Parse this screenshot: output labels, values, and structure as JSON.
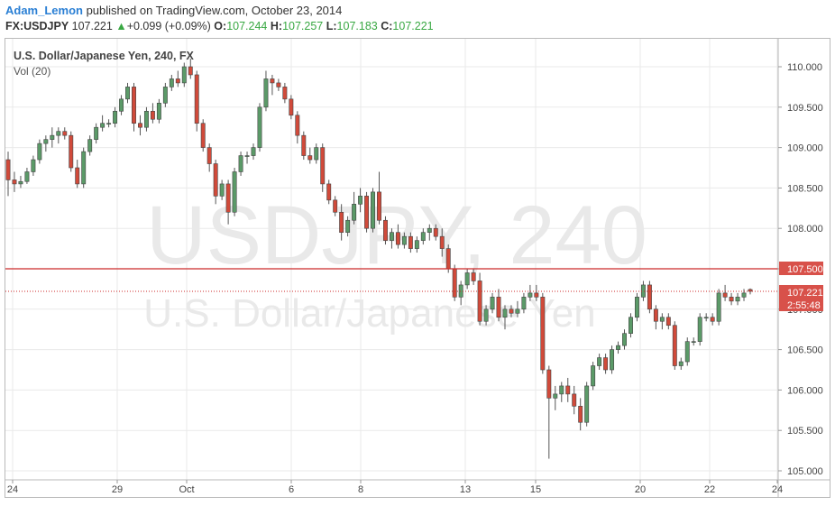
{
  "header": {
    "author": "Adam_Lemon",
    "published": " published on TradingView.com, October 23, 2014",
    "symbol": "FX:USDJPY",
    "last": "107.221",
    "change_arrow": "▲",
    "change": "+0.099 (+0.09%)",
    "open_label": "O:",
    "open": "107.244",
    "high_label": "H:",
    "high": "107.257",
    "low_label": "L:",
    "low": "107.183",
    "close_label": "C:",
    "close": "107.221"
  },
  "chart_title": "U.S. Dollar/Japanese Yen, 240, FX",
  "volume_label": "Vol (20)",
  "watermark": {
    "line1": "USDJPY, 240",
    "line2": "U.S. Dollar/Japanese Yen"
  },
  "colors": {
    "up": "#5b9a68",
    "down": "#d04a3a",
    "resistance": "#cc2a2a",
    "price_tag": "#d8514a",
    "grid": "#eaeaea"
  },
  "chart_data": {
    "type": "candlestick",
    "ylim": [
      104.95,
      110.15
    ],
    "y_ticks": [
      "105.000",
      "105.500",
      "106.000",
      "106.500",
      "107.000",
      "107.500",
      "108.000",
      "108.500",
      "109.000",
      "109.500",
      "110.000"
    ],
    "x_ticks": [
      "24",
      "29",
      "Oct",
      "6",
      "8",
      "13",
      "15",
      "20",
      "22",
      "24"
    ],
    "resistance_level": 107.5,
    "resistance_label": "107.500",
    "current_price": 107.221,
    "current_label": "107.221",
    "countdown": "2:55:48",
    "candles": [
      [
        108.85,
        108.95,
        108.4,
        108.6
      ],
      [
        108.6,
        108.7,
        108.45,
        108.55
      ],
      [
        108.55,
        108.65,
        108.5,
        108.58
      ],
      [
        108.58,
        108.75,
        108.55,
        108.7
      ],
      [
        108.7,
        108.9,
        108.65,
        108.85
      ],
      [
        108.85,
        109.1,
        108.8,
        109.05
      ],
      [
        109.05,
        109.15,
        108.95,
        109.1
      ],
      [
        109.1,
        109.25,
        109.0,
        109.15
      ],
      [
        109.15,
        109.25,
        109.05,
        109.2
      ],
      [
        109.2,
        109.25,
        109.1,
        109.15
      ],
      [
        109.15,
        109.2,
        108.7,
        108.75
      ],
      [
        108.75,
        108.85,
        108.5,
        108.55
      ],
      [
        108.55,
        109.0,
        108.5,
        108.95
      ],
      [
        108.95,
        109.15,
        108.9,
        109.1
      ],
      [
        109.1,
        109.3,
        109.05,
        109.25
      ],
      [
        109.25,
        109.4,
        109.2,
        109.3
      ],
      [
        109.3,
        109.35,
        109.25,
        109.3
      ],
      [
        109.3,
        109.5,
        109.25,
        109.45
      ],
      [
        109.45,
        109.65,
        109.4,
        109.6
      ],
      [
        109.6,
        109.8,
        109.55,
        109.75
      ],
      [
        109.75,
        109.8,
        109.2,
        109.3
      ],
      [
        109.3,
        109.4,
        109.15,
        109.25
      ],
      [
        109.25,
        109.5,
        109.2,
        109.45
      ],
      [
        109.45,
        109.55,
        109.3,
        109.35
      ],
      [
        109.35,
        109.6,
        109.3,
        109.55
      ],
      [
        109.55,
        109.8,
        109.5,
        109.75
      ],
      [
        109.75,
        109.9,
        109.7,
        109.85
      ],
      [
        109.85,
        109.95,
        109.75,
        109.8
      ],
      [
        109.8,
        110.05,
        109.75,
        110.0
      ],
      [
        110.0,
        110.1,
        109.85,
        109.9
      ],
      [
        109.9,
        109.95,
        109.2,
        109.3
      ],
      [
        109.3,
        109.35,
        108.95,
        109.0
      ],
      [
        109.0,
        109.05,
        108.7,
        108.8
      ],
      [
        108.8,
        108.85,
        108.3,
        108.4
      ],
      [
        108.4,
        108.6,
        108.35,
        108.55
      ],
      [
        108.55,
        108.6,
        108.05,
        108.2
      ],
      [
        108.2,
        108.75,
        108.15,
        108.7
      ],
      [
        108.7,
        108.95,
        108.65,
        108.9
      ],
      [
        108.9,
        108.95,
        108.8,
        108.9
      ],
      [
        108.9,
        109.05,
        108.85,
        109.0
      ],
      [
        109.0,
        109.55,
        108.95,
        109.5
      ],
      [
        109.5,
        109.95,
        109.45,
        109.85
      ],
      [
        109.85,
        109.9,
        109.65,
        109.8
      ],
      [
        109.8,
        109.85,
        109.7,
        109.75
      ],
      [
        109.75,
        109.8,
        109.55,
        109.6
      ],
      [
        109.6,
        109.65,
        109.35,
        109.4
      ],
      [
        109.4,
        109.45,
        109.05,
        109.15
      ],
      [
        109.15,
        109.2,
        108.85,
        108.9
      ],
      [
        108.9,
        109.0,
        108.8,
        108.85
      ],
      [
        108.85,
        109.05,
        108.8,
        109.0
      ],
      [
        109.0,
        109.05,
        108.45,
        108.55
      ],
      [
        108.55,
        108.6,
        108.3,
        108.35
      ],
      [
        108.35,
        108.4,
        108.15,
        108.2
      ],
      [
        108.2,
        108.3,
        107.85,
        107.95
      ],
      [
        107.95,
        108.15,
        107.9,
        108.1
      ],
      [
        108.1,
        108.45,
        108.05,
        108.3
      ],
      [
        108.3,
        108.5,
        108.2,
        108.4
      ],
      [
        108.4,
        108.45,
        107.95,
        108.0
      ],
      [
        108.0,
        108.5,
        107.95,
        108.45
      ],
      [
        108.45,
        108.7,
        108.05,
        108.1
      ],
      [
        108.1,
        108.15,
        107.8,
        107.85
      ],
      [
        107.85,
        108.0,
        107.75,
        107.95
      ],
      [
        107.95,
        108.05,
        107.75,
        107.8
      ],
      [
        107.8,
        107.95,
        107.75,
        107.9
      ],
      [
        107.9,
        107.95,
        107.7,
        107.75
      ],
      [
        107.75,
        107.9,
        107.7,
        107.85
      ],
      [
        107.85,
        108.0,
        107.8,
        107.95
      ],
      [
        107.95,
        108.05,
        107.85,
        108.0
      ],
      [
        108.0,
        108.05,
        107.85,
        107.9
      ],
      [
        107.9,
        108.0,
        107.65,
        107.75
      ],
      [
        107.75,
        107.8,
        107.45,
        107.5
      ],
      [
        107.5,
        107.55,
        107.1,
        107.15
      ],
      [
        107.15,
        107.35,
        107.05,
        107.3
      ],
      [
        107.3,
        107.5,
        107.25,
        107.45
      ],
      [
        107.45,
        107.5,
        107.3,
        107.35
      ],
      [
        107.35,
        107.45,
        106.8,
        106.85
      ],
      [
        106.85,
        107.05,
        106.8,
        107.0
      ],
      [
        107.0,
        107.2,
        106.95,
        107.15
      ],
      [
        107.15,
        107.25,
        106.85,
        106.9
      ],
      [
        106.9,
        107.05,
        106.75,
        107.0
      ],
      [
        107.0,
        107.05,
        106.9,
        106.95
      ],
      [
        106.95,
        107.1,
        106.9,
        107.0
      ],
      [
        107.0,
        107.2,
        106.95,
        107.15
      ],
      [
        107.15,
        107.3,
        107.1,
        107.2
      ],
      [
        107.2,
        107.3,
        107.1,
        107.15
      ],
      [
        107.15,
        107.2,
        106.2,
        106.25
      ],
      [
        106.25,
        106.3,
        105.15,
        105.9
      ],
      [
        105.9,
        106.05,
        105.75,
        105.95
      ],
      [
        105.95,
        106.1,
        105.85,
        106.05
      ],
      [
        106.05,
        106.15,
        105.85,
        105.95
      ],
      [
        105.95,
        106.05,
        105.7,
        105.8
      ],
      [
        105.8,
        105.9,
        105.5,
        105.6
      ],
      [
        105.6,
        106.1,
        105.55,
        106.05
      ],
      [
        106.05,
        106.35,
        106.0,
        106.3
      ],
      [
        106.3,
        106.45,
        106.25,
        106.4
      ],
      [
        106.4,
        106.45,
        106.2,
        106.25
      ],
      [
        106.25,
        106.55,
        106.2,
        106.5
      ],
      [
        106.5,
        106.6,
        106.45,
        106.55
      ],
      [
        106.55,
        106.75,
        106.5,
        106.7
      ],
      [
        106.7,
        106.95,
        106.65,
        106.9
      ],
      [
        106.9,
        107.2,
        106.85,
        107.15
      ],
      [
        107.15,
        107.35,
        107.1,
        107.3
      ],
      [
        107.3,
        107.35,
        106.95,
        107.0
      ],
      [
        107.0,
        107.05,
        106.75,
        106.85
      ],
      [
        106.85,
        106.95,
        106.75,
        106.9
      ],
      [
        106.9,
        106.95,
        106.75,
        106.8
      ],
      [
        106.8,
        106.85,
        106.25,
        106.3
      ],
      [
        106.3,
        106.4,
        106.25,
        106.35
      ],
      [
        106.35,
        106.65,
        106.3,
        106.6
      ],
      [
        106.6,
        106.65,
        106.55,
        106.6
      ],
      [
        106.6,
        106.95,
        106.55,
        106.9
      ],
      [
        106.9,
        106.95,
        106.85,
        106.9
      ],
      [
        106.9,
        106.95,
        106.8,
        106.85
      ],
      [
        106.85,
        107.25,
        106.8,
        107.2
      ],
      [
        107.2,
        107.3,
        107.1,
        107.15
      ],
      [
        107.15,
        107.2,
        107.05,
        107.1
      ],
      [
        107.1,
        107.2,
        107.05,
        107.15
      ],
      [
        107.15,
        107.25,
        107.1,
        107.2
      ],
      [
        107.244,
        107.257,
        107.183,
        107.221
      ]
    ]
  }
}
